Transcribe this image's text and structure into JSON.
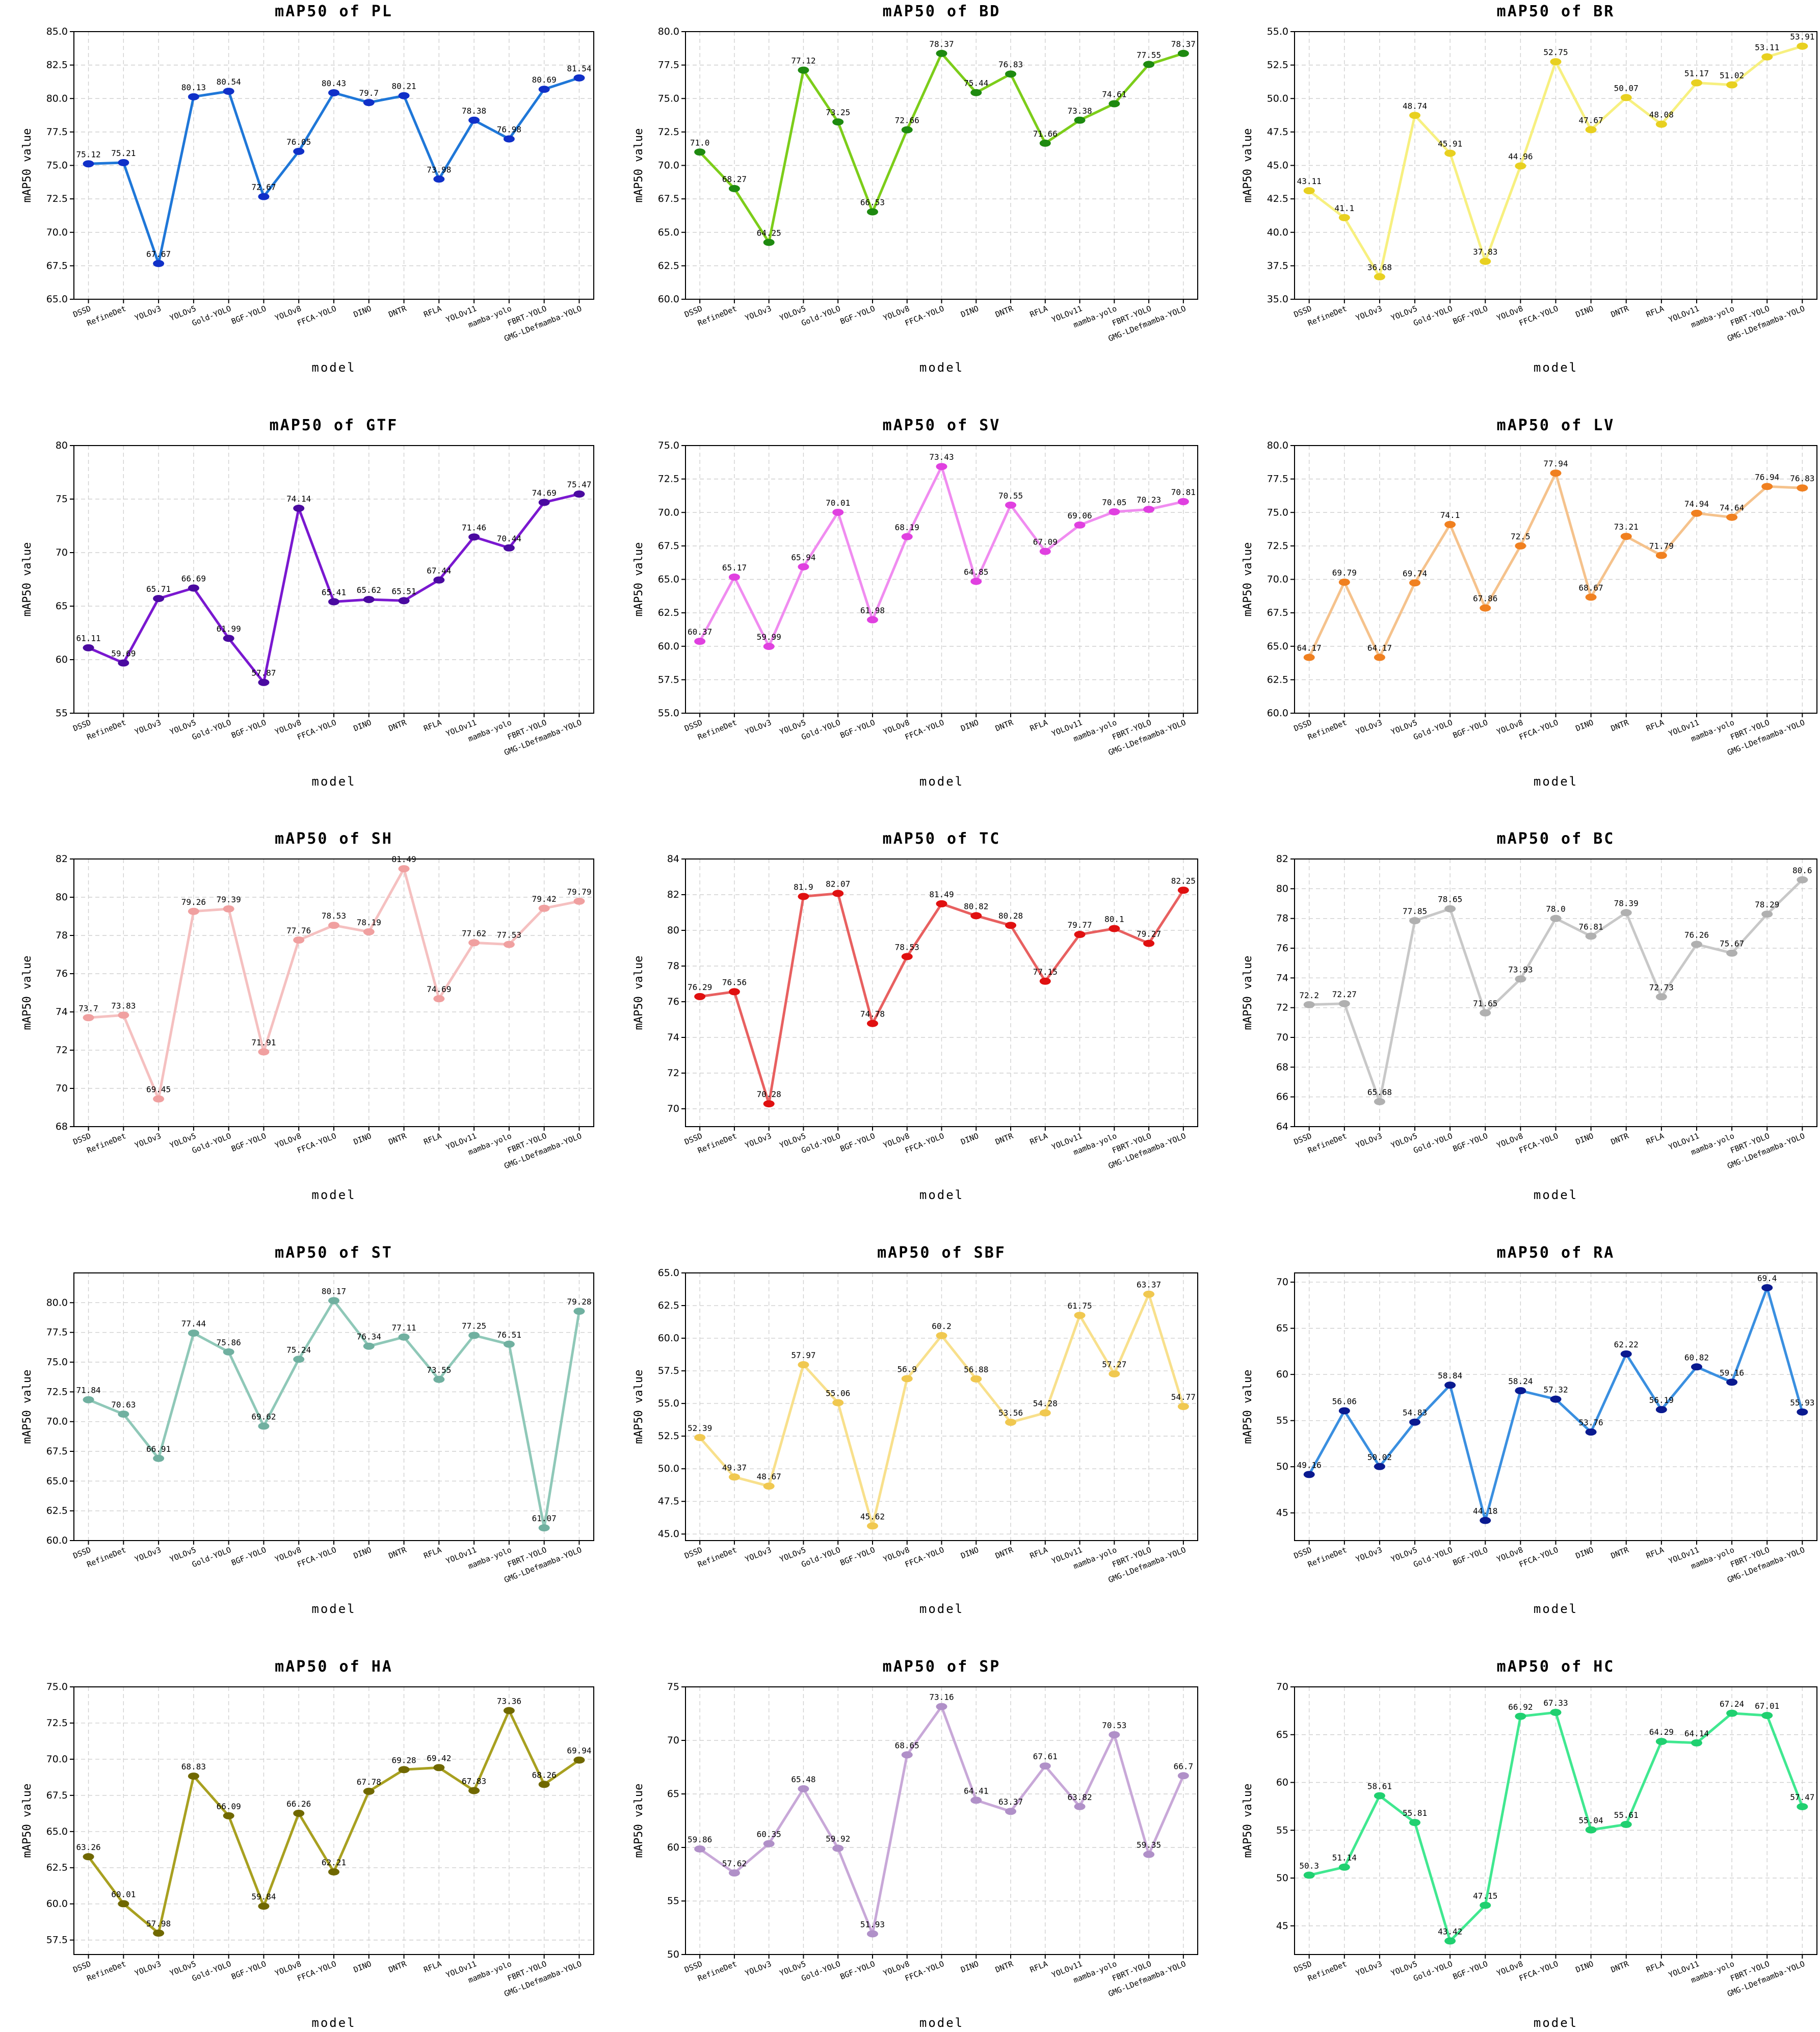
{
  "chart_data": [
    {
      "type": "line",
      "title": "mAP50  of  PL",
      "xlabel": "model",
      "ylabel": "mAP50 value",
      "ylim": [
        65,
        85
      ],
      "yticks": [
        65.0,
        67.5,
        70.0,
        72.5,
        75.0,
        77.5,
        80.0,
        82.5,
        85.0
      ],
      "tick_decimals": 1,
      "color": "#1f77d8",
      "marker_color": "#1030c8",
      "categories": [
        "DSSD",
        "RefineDet",
        "YOLOv3",
        "YOLOv5",
        "Gold-YOLO",
        "BGF-YOLO",
        "YOLOv8",
        "FFCA-YOLO",
        "DINO",
        "DNTR",
        "RFLA",
        "YOLOv11",
        "mamba-yolo",
        "FBRT-YOLO",
        "GMG-LDefmamba-YOLO"
      ],
      "values": [
        75.12,
        75.21,
        67.67,
        80.13,
        80.54,
        72.67,
        76.05,
        80.43,
        79.7,
        80.21,
        73.98,
        78.38,
        76.98,
        80.69,
        81.54
      ],
      "labels": [
        "75.12",
        "75.21",
        "67.67",
        "80.13",
        "80.54",
        "72.67",
        "76.05",
        "80.43",
        "79.7",
        "80.21",
        "73.98",
        "78.38",
        "76.98",
        "80.69",
        "81.54"
      ]
    },
    {
      "type": "line",
      "title": "mAP50  of  BD",
      "xlabel": "model",
      "ylabel": "mAP50 value",
      "ylim": [
        60,
        80
      ],
      "yticks": [
        60.0,
        62.5,
        65.0,
        67.5,
        70.0,
        72.5,
        75.0,
        77.5,
        80.0
      ],
      "tick_decimals": 1,
      "color": "#7ccd1a",
      "marker_color": "#1e8a10",
      "categories": [
        "DSSD",
        "RefineDet",
        "YOLOv3",
        "YOLOv5",
        "Gold-YOLO",
        "BGF-YOLO",
        "YOLOv8",
        "FFCA-YOLO",
        "DINO",
        "DNTR",
        "RFLA",
        "YOLOv11",
        "mamba-yolo",
        "FBRT-YOLO",
        "GMG-LDefmamba-YOLO"
      ],
      "values": [
        71.0,
        68.27,
        64.25,
        77.12,
        73.25,
        66.53,
        72.66,
        78.37,
        75.44,
        76.83,
        71.66,
        73.38,
        74.61,
        77.55,
        78.37
      ],
      "labels": [
        "71.0",
        "68.27",
        "64.25",
        "77.12",
        "73.25",
        "66.53",
        "72.66",
        "78.37",
        "75.44",
        "76.83",
        "71.66",
        "73.38",
        "74.61",
        "77.55",
        "78.37"
      ]
    },
    {
      "type": "line",
      "title": "mAP50  of  BR",
      "xlabel": "model",
      "ylabel": "mAP50 value",
      "ylim": [
        35,
        55
      ],
      "yticks": [
        35.0,
        37.5,
        40.0,
        42.5,
        45.0,
        47.5,
        50.0,
        52.5,
        55.0
      ],
      "tick_decimals": 1,
      "color": "#f7f080",
      "marker_color": "#e8d020",
      "categories": [
        "DSSD",
        "RefineDet",
        "YOLOv3",
        "YOLOv5",
        "Gold-YOLO",
        "BGF-YOLO",
        "YOLOv8",
        "FFCA-YOLO",
        "DINO",
        "DNTR",
        "RFLA",
        "YOLOv11",
        "mamba-yolo",
        "FBRT-YOLO",
        "GMG-LDefmamba-YOLO"
      ],
      "values": [
        43.11,
        41.1,
        36.68,
        48.74,
        45.91,
        37.83,
        44.96,
        52.75,
        47.67,
        50.07,
        48.08,
        51.17,
        51.02,
        53.11,
        53.91
      ],
      "labels": [
        "43.11",
        "41.1",
        "36.68",
        "48.74",
        "45.91",
        "37.83",
        "44.96",
        "52.75",
        "47.67",
        "50.07",
        "48.08",
        "51.17",
        "51.02",
        "53.11",
        "53.91"
      ]
    },
    {
      "type": "line",
      "title": "mAP50  of  GTF",
      "xlabel": "model",
      "ylabel": "mAP50 value",
      "ylim": [
        55,
        80
      ],
      "yticks": [
        55,
        60,
        65,
        70,
        75,
        80
      ],
      "tick_decimals": 0,
      "color": "#7a18d0",
      "marker_color": "#4a0aa0",
      "categories": [
        "DSSD",
        "RefineDet",
        "YOLOv3",
        "YOLOv5",
        "Gold-YOLO",
        "BGF-YOLO",
        "YOLOv8",
        "FFCA-YOLO",
        "DINO",
        "DNTR",
        "RFLA",
        "YOLOv11",
        "mamba-yolo",
        "FBRT-YOLO",
        "GMG-LDefmamba-YOLO"
      ],
      "values": [
        61.11,
        59.69,
        65.71,
        66.69,
        61.99,
        57.87,
        74.14,
        65.41,
        65.62,
        65.51,
        67.44,
        71.46,
        70.44,
        74.69,
        75.47
      ],
      "labels": [
        "61.11",
        "59.69",
        "65.71",
        "66.69",
        "61.99",
        "57.87",
        "74.14",
        "65.41",
        "65.62",
        "65.51",
        "67.44",
        "71.46",
        "70.44",
        "74.69",
        "75.47"
      ]
    },
    {
      "type": "line",
      "title": "mAP50  of  SV",
      "xlabel": "model",
      "ylabel": "mAP50 value",
      "ylim": [
        55,
        75
      ],
      "yticks": [
        55.0,
        57.5,
        60.0,
        62.5,
        65.0,
        67.5,
        70.0,
        72.5,
        75.0
      ],
      "tick_decimals": 1,
      "color": "#f08cf0",
      "marker_color": "#e040e0",
      "categories": [
        "DSSD",
        "RefineDet",
        "YOLOv3",
        "YOLOv5",
        "Gold-YOLO",
        "BGF-YOLO",
        "YOLOv8",
        "FFCA-YOLO",
        "DINO",
        "DNTR",
        "RFLA",
        "YOLOv11",
        "mamba-yolo",
        "FBRT-YOLO",
        "GMG-LDefmamba-YOLO"
      ],
      "values": [
        60.37,
        65.17,
        59.99,
        65.94,
        70.01,
        61.98,
        68.19,
        73.43,
        64.85,
        70.55,
        67.09,
        69.06,
        70.05,
        70.23,
        70.81
      ],
      "labels": [
        "60.37",
        "65.17",
        "59.99",
        "65.94",
        "70.01",
        "61.98",
        "68.19",
        "73.43",
        "64.85",
        "70.55",
        "67.09",
        "69.06",
        "70.05",
        "70.23",
        "70.81"
      ]
    },
    {
      "type": "line",
      "title": "mAP50  of  LV",
      "xlabel": "model",
      "ylabel": "mAP50 value",
      "ylim": [
        60,
        80
      ],
      "yticks": [
        60.0,
        62.5,
        65.0,
        67.5,
        70.0,
        72.5,
        75.0,
        77.5,
        80.0
      ],
      "tick_decimals": 1,
      "color": "#f5c28c",
      "marker_color": "#f08020",
      "categories": [
        "DSSD",
        "RefineDet",
        "YOLOv3",
        "YOLOv5",
        "Gold-YOLO",
        "BGF-YOLO",
        "YOLOv8",
        "FFCA-YOLO",
        "DINO",
        "DNTR",
        "RFLA",
        "YOLOv11",
        "mamba-yolo",
        "FBRT-YOLO",
        "GMG-LDefmamba-YOLO"
      ],
      "values": [
        64.17,
        69.79,
        64.17,
        69.74,
        74.1,
        67.86,
        72.5,
        77.94,
        68.67,
        73.21,
        71.79,
        74.94,
        74.64,
        76.94,
        76.83
      ],
      "labels": [
        "64.17",
        "69.79",
        "64.17",
        "69.74",
        "74.1",
        "67.86",
        "72.5",
        "77.94",
        "68.67",
        "73.21",
        "71.79",
        "74.94",
        "74.64",
        "76.94",
        "76.83"
      ]
    },
    {
      "type": "line",
      "title": "mAP50  of  SH",
      "xlabel": "model",
      "ylabel": "mAP50 value",
      "ylim": [
        68,
        82
      ],
      "yticks": [
        68,
        70,
        72,
        74,
        76,
        78,
        80,
        82
      ],
      "tick_decimals": 0,
      "color": "#f5c0c0",
      "marker_color": "#f0a0a0",
      "categories": [
        "DSSD",
        "RefineDet",
        "YOLOv3",
        "YOLOv5",
        "Gold-YOLO",
        "BGF-YOLO",
        "YOLOv8",
        "FFCA-YOLO",
        "DINO",
        "DNTR",
        "RFLA",
        "YOLOv11",
        "mamba-yolo",
        "FBRT-YOLO",
        "GMG-LDefmamba-YOLO"
      ],
      "values": [
        73.7,
        73.83,
        69.45,
        79.26,
        79.39,
        71.91,
        77.76,
        78.53,
        78.19,
        81.49,
        74.69,
        77.62,
        77.53,
        79.42,
        79.79
      ],
      "labels": [
        "73.7",
        "73.83",
        "69.45",
        "79.26",
        "79.39",
        "71.91",
        "77.76",
        "78.53",
        "78.19",
        "81.49",
        "74.69",
        "77.62",
        "77.53",
        "79.42",
        "79.79"
      ]
    },
    {
      "type": "line",
      "title": "mAP50  of  TC",
      "xlabel": "model",
      "ylabel": "mAP50 value",
      "ylim": [
        69,
        84
      ],
      "yticks": [
        70,
        72,
        74,
        76,
        78,
        80,
        82,
        84
      ],
      "tick_decimals": 0,
      "color": "#e86060",
      "marker_color": "#e01010",
      "categories": [
        "DSSD",
        "RefineDet",
        "YOLOv3",
        "YOLOv5",
        "Gold-YOLO",
        "BGF-YOLO",
        "YOLOv8",
        "FFCA-YOLO",
        "DINO",
        "DNTR",
        "RFLA",
        "YOLOv11",
        "mamba-yolo",
        "FBRT-YOLO",
        "GMG-LDefmamba-YOLO"
      ],
      "values": [
        76.29,
        76.56,
        70.28,
        81.9,
        82.07,
        74.78,
        78.53,
        81.49,
        80.82,
        80.28,
        77.15,
        79.77,
        80.1,
        79.27,
        82.25
      ],
      "labels": [
        "76.29",
        "76.56",
        "70.28",
        "81.9",
        "82.07",
        "74.78",
        "78.53",
        "81.49",
        "80.82",
        "80.28",
        "77.15",
        "79.77",
        "80.1",
        "79.27",
        "82.25"
      ]
    },
    {
      "type": "line",
      "title": "mAP50  of  BC",
      "xlabel": "model",
      "ylabel": "mAP50 value",
      "ylim": [
        64,
        82
      ],
      "yticks": [
        64,
        66,
        68,
        70,
        72,
        74,
        76,
        78,
        80,
        82
      ],
      "tick_decimals": 0,
      "color": "#c8c8c8",
      "marker_color": "#b0b0b0",
      "categories": [
        "DSSD",
        "RefineDet",
        "YOLOv3",
        "YOLOv5",
        "Gold-YOLO",
        "BGF-YOLO",
        "YOLOv8",
        "FFCA-YOLO",
        "DINO",
        "DNTR",
        "RFLA",
        "YOLOv11",
        "mamba-yolo",
        "FBRT-YOLO",
        "GMG-LDefmamba-YOLO"
      ],
      "values": [
        72.2,
        72.27,
        65.68,
        77.85,
        78.65,
        71.65,
        73.93,
        78.0,
        76.81,
        78.39,
        72.73,
        76.26,
        75.67,
        78.29,
        80.6
      ],
      "labels": [
        "72.2",
        "72.27",
        "65.68",
        "77.85",
        "78.65",
        "71.65",
        "73.93",
        "78.0",
        "76.81",
        "78.39",
        "72.73",
        "76.26",
        "75.67",
        "78.29",
        "80.6"
      ]
    },
    {
      "type": "line",
      "title": "mAP50  of  ST",
      "xlabel": "model",
      "ylabel": "mAP50 value",
      "ylim": [
        60,
        82.5
      ],
      "yticks": [
        60.0,
        62.5,
        65.0,
        67.5,
        70.0,
        72.5,
        75.0,
        77.5,
        80.0
      ],
      "tick_decimals": 1,
      "color": "#8fc8b8",
      "marker_color": "#70b0a0",
      "categories": [
        "DSSD",
        "RefineDet",
        "YOLOv3",
        "YOLOv5",
        "Gold-YOLO",
        "BGF-YOLO",
        "YOLOv8",
        "FFCA-YOLO",
        "DINO",
        "DNTR",
        "RFLA",
        "YOLOv11",
        "mamba-yolo",
        "FBRT-YOLO",
        "GMG-LDefmamba-YOLO"
      ],
      "values": [
        71.84,
        70.63,
        66.91,
        77.44,
        75.86,
        69.62,
        75.24,
        80.17,
        76.34,
        77.11,
        73.55,
        77.25,
        76.51,
        61.07,
        79.28
      ],
      "labels": [
        "71.84",
        "70.63",
        "66.91",
        "77.44",
        "75.86",
        "69.62",
        "75.24",
        "80.17",
        "76.34",
        "77.11",
        "73.55",
        "77.25",
        "76.51",
        "61.07",
        "79.28"
      ]
    },
    {
      "type": "line",
      "title": "mAP50  of  SBF",
      "xlabel": "model",
      "ylabel": "mAP50 value",
      "ylim": [
        44.5,
        65
      ],
      "yticks": [
        45.0,
        47.5,
        50.0,
        52.5,
        55.0,
        57.5,
        60.0,
        62.5,
        65.0
      ],
      "tick_decimals": 1,
      "color": "#f8e08c",
      "marker_color": "#f0c850",
      "categories": [
        "DSSD",
        "RefineDet",
        "YOLOv3",
        "YOLOv5",
        "Gold-YOLO",
        "BGF-YOLO",
        "YOLOv8",
        "FFCA-YOLO",
        "DINO",
        "DNTR",
        "RFLA",
        "YOLOv11",
        "mamba-yolo",
        "FBRT-YOLO",
        "GMG-LDefmamba-YOLO"
      ],
      "values": [
        52.39,
        49.37,
        48.67,
        57.97,
        55.06,
        45.62,
        56.9,
        60.2,
        56.88,
        53.56,
        54.28,
        61.75,
        57.27,
        63.37,
        54.77
      ],
      "labels": [
        "52.39",
        "49.37",
        "48.67",
        "57.97",
        "55.06",
        "45.62",
        "56.9",
        "60.2",
        "56.88",
        "53.56",
        "54.28",
        "61.75",
        "57.27",
        "63.37",
        "54.77"
      ]
    },
    {
      "type": "line",
      "title": "mAP50  of  RA",
      "xlabel": "model",
      "ylabel": "mAP50 value",
      "ylim": [
        42,
        71
      ],
      "yticks": [
        45,
        50,
        55,
        60,
        65,
        70
      ],
      "tick_decimals": 0,
      "color": "#3a8fe0",
      "marker_color": "#0a1a90",
      "categories": [
        "DSSD",
        "RefineDet",
        "YOLOv3",
        "YOLOv5",
        "Gold-YOLO",
        "BGF-YOLO",
        "YOLOv8",
        "FFCA-YOLO",
        "DINO",
        "DNTR",
        "RFLA",
        "YOLOv11",
        "mamba-yolo",
        "FBRT-YOLO",
        "GMG-LDefmamba-YOLO"
      ],
      "values": [
        49.16,
        56.06,
        50.02,
        54.83,
        58.84,
        44.18,
        58.24,
        57.32,
        53.76,
        62.22,
        56.19,
        60.82,
        59.16,
        69.4,
        55.93
      ],
      "labels": [
        "49.16",
        "56.06",
        "50.02",
        "54.83",
        "58.84",
        "44.18",
        "58.24",
        "57.32",
        "53.76",
        "62.22",
        "56.19",
        "60.82",
        "59.16",
        "69.4",
        "55.93"
      ]
    },
    {
      "type": "line",
      "title": "mAP50  of  HA",
      "xlabel": "model",
      "ylabel": "mAP50 value",
      "ylim": [
        56.5,
        75
      ],
      "yticks": [
        57.5,
        60.0,
        62.5,
        65.0,
        67.5,
        70.0,
        72.5,
        75.0
      ],
      "tick_decimals": 1,
      "color": "#a8a020",
      "marker_color": "#706800",
      "categories": [
        "DSSD",
        "RefineDet",
        "YOLOv3",
        "YOLOv5",
        "Gold-YOLO",
        "BGF-YOLO",
        "YOLOv8",
        "FFCA-YOLO",
        "DINO",
        "DNTR",
        "RFLA",
        "YOLOv11",
        "mamba-yolo",
        "FBRT-YOLO",
        "GMG-LDefmamba-YOLO"
      ],
      "values": [
        63.26,
        60.01,
        57.98,
        68.83,
        66.09,
        59.84,
        66.26,
        62.21,
        67.78,
        69.28,
        69.42,
        67.83,
        73.36,
        68.26,
        69.94
      ],
      "labels": [
        "63.26",
        "60.01",
        "57.98",
        "68.83",
        "66.09",
        "59.84",
        "66.26",
        "62.21",
        "67.78",
        "69.28",
        "69.42",
        "67.83",
        "73.36",
        "68.26",
        "69.94"
      ]
    },
    {
      "type": "line",
      "title": "mAP50  of  SP",
      "xlabel": "model",
      "ylabel": "mAP50 value",
      "ylim": [
        50,
        75
      ],
      "yticks": [
        50,
        55,
        60,
        65,
        70,
        75
      ],
      "tick_decimals": 0,
      "color": "#c8a8d8",
      "marker_color": "#b090c8",
      "categories": [
        "DSSD",
        "RefineDet",
        "YOLOv3",
        "YOLOv5",
        "Gold-YOLO",
        "BGF-YOLO",
        "YOLOv8",
        "FFCA-YOLO",
        "DINO",
        "DNTR",
        "RFLA",
        "YOLOv11",
        "mamba-yolo",
        "FBRT-YOLO",
        "GMG-LDefmamba-YOLO"
      ],
      "values": [
        59.86,
        57.62,
        60.35,
        65.48,
        59.92,
        51.93,
        68.65,
        73.16,
        64.41,
        63.37,
        67.61,
        63.82,
        70.53,
        59.35,
        66.7
      ],
      "labels": [
        "59.86",
        "57.62",
        "60.35",
        "65.48",
        "59.92",
        "51.93",
        "68.65",
        "73.16",
        "64.41",
        "63.37",
        "67.61",
        "63.82",
        "70.53",
        "59.35",
        "66.7"
      ]
    },
    {
      "type": "line",
      "title": "mAP50  of  HC",
      "xlabel": "model",
      "ylabel": "mAP50 value",
      "ylim": [
        42,
        70
      ],
      "yticks": [
        45,
        50,
        55,
        60,
        65,
        70
      ],
      "tick_decimals": 0,
      "color": "#40e890",
      "marker_color": "#20d070",
      "categories": [
        "DSSD",
        "RefineDet",
        "YOLOv3",
        "YOLOv5",
        "Gold-YOLO",
        "BGF-YOLO",
        "YOLOv8",
        "FFCA-YOLO",
        "DINO",
        "DNTR",
        "RFLA",
        "YOLOv11",
        "mamba-yolo",
        "FBRT-YOLO",
        "GMG-LDefmamba-YOLO"
      ],
      "values": [
        50.3,
        51.14,
        58.61,
        55.81,
        43.42,
        47.15,
        66.92,
        67.33,
        55.04,
        55.61,
        64.29,
        64.14,
        67.24,
        67.01,
        57.47
      ],
      "labels": [
        "50.3",
        "51.14",
        "58.61",
        "55.81",
        "43.42",
        "47.15",
        "66.92",
        "67.33",
        "55.04",
        "55.61",
        "64.29",
        "64.14",
        "67.24",
        "67.01",
        "57.47"
      ]
    }
  ]
}
